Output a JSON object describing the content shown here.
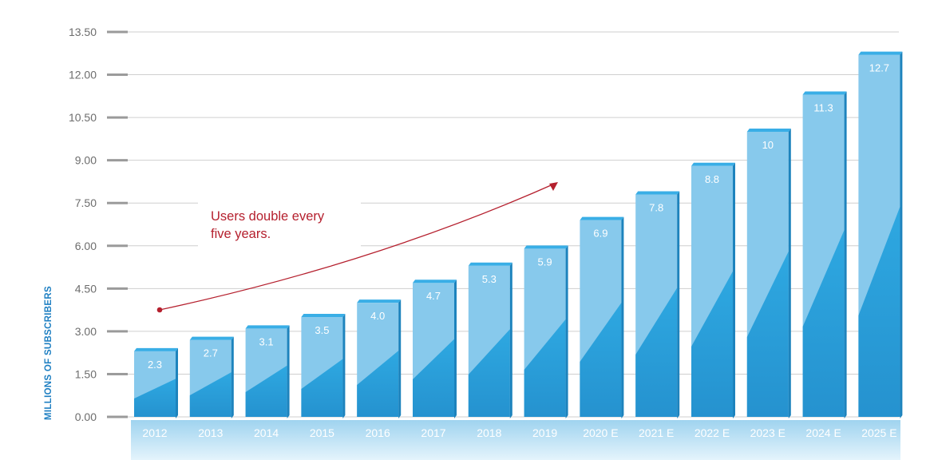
{
  "chart_data": {
    "type": "bar",
    "title": "",
    "xlabel": "",
    "ylabel": "MILLIONS OF SUBSCRIBERS",
    "ylim": [
      0,
      13.5
    ],
    "yticks": [
      "0.00",
      "1.50",
      "3.00",
      "4.50",
      "6.00",
      "7.50",
      "9.00",
      "10.50",
      "12.00",
      "13.50"
    ],
    "categories": [
      "2012",
      "2013",
      "2014",
      "2015",
      "2016",
      "2017",
      "2018",
      "2019",
      "2020 E",
      "2021 E",
      "2022 E",
      "2023 E",
      "2024 E",
      "2025 E"
    ],
    "values": [
      2.3,
      2.7,
      3.1,
      3.5,
      4.0,
      4.7,
      5.3,
      5.9,
      6.9,
      7.8,
      8.8,
      10,
      11.3,
      12.7
    ],
    "value_labels": [
      "2.3",
      "2.7",
      "3.1",
      "3.5",
      "4.0",
      "4.7",
      "5.3",
      "5.9",
      "6.9",
      "7.8",
      "8.8",
      "10",
      "11.3",
      "12.7"
    ],
    "grid": true,
    "annotation": "Users double every five years."
  },
  "colors": {
    "bar_light": "#87c9ec",
    "bar_dark": "#2b9fd9",
    "bar_side": "#1d83bd",
    "bar_top": "#39aee6",
    "gridline": "#cfcfcf",
    "tick_mark": "#9a9a9a",
    "axis_label": "#1e7fc2",
    "arrow": "#b5202e",
    "annotation_text": "#b5202e",
    "xtick_strip": "#a9d8f1"
  }
}
